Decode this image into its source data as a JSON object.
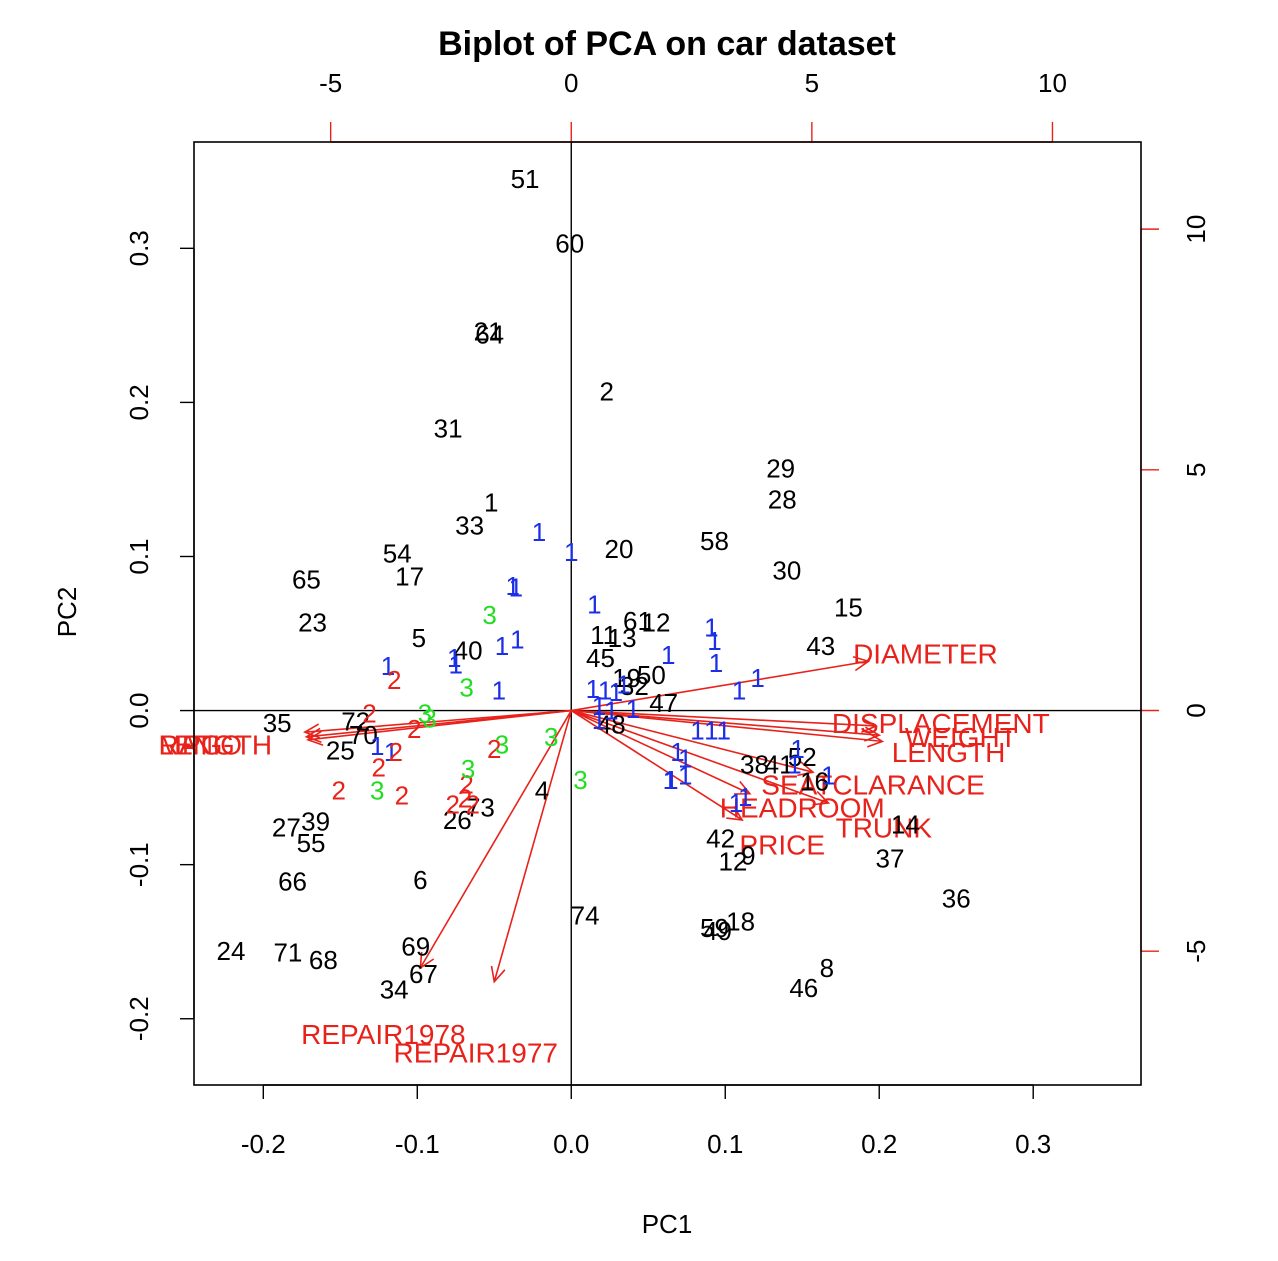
{
  "colors": {
    "observation_default": "#000000",
    "group1": "#1b2ee8",
    "group2": "#e8221b",
    "group3": "#22dd22",
    "vector": "#e8221b",
    "frame": "#000000"
  },
  "chart_data": {
    "type": "scatter",
    "subtype": "biplot",
    "title": "Biplot of PCA on car dataset",
    "xlabel": "PC1",
    "ylabel": "PC2",
    "xlim": [
      -0.245,
      0.37
    ],
    "ylim": [
      -0.243,
      0.369
    ],
    "x_ticks": [
      -0.2,
      -0.1,
      0.0,
      0.1,
      0.2,
      0.3
    ],
    "x_tick_labels": [
      "-0.2",
      "-0.1",
      "0.0",
      "0.1",
      "0.2",
      "0.3"
    ],
    "y_ticks": [
      -0.2,
      -0.1,
      0.0,
      0.1,
      0.2,
      0.3
    ],
    "y_tick_labels": [
      "-0.2",
      "-0.1",
      "0.0",
      "0.1",
      "0.2",
      "0.3"
    ],
    "top_axis": {
      "lim": [
        -7.84,
        11.84
      ],
      "ticks": [
        -5,
        0,
        5,
        10
      ],
      "tick_labels": [
        "-5",
        "0",
        "5",
        "10"
      ]
    },
    "right_axis": {
      "lim": [
        -7.78,
        11.81
      ],
      "ticks": [
        -5,
        0,
        5,
        10
      ],
      "tick_labels": [
        "-5",
        "0",
        "5",
        "10"
      ]
    },
    "observations": [
      {
        "label": "51",
        "x": -0.03,
        "y": 0.345,
        "group": 0
      },
      {
        "label": "60",
        "x": -0.001,
        "y": 0.303,
        "group": 0
      },
      {
        "label": "21",
        "x": -0.054,
        "y": 0.246,
        "group": 0
      },
      {
        "label": "64",
        "x": -0.053,
        "y": 0.244,
        "group": 0
      },
      {
        "label": "2",
        "x": 0.023,
        "y": 0.207,
        "group": 0
      },
      {
        "label": "31",
        "x": -0.08,
        "y": 0.183,
        "group": 0
      },
      {
        "label": "29",
        "x": 0.136,
        "y": 0.157,
        "group": 0
      },
      {
        "label": "28",
        "x": 0.137,
        "y": 0.137,
        "group": 0
      },
      {
        "label": "1",
        "x": -0.052,
        "y": 0.135,
        "group": 0
      },
      {
        "label": "33",
        "x": -0.066,
        "y": 0.12,
        "group": 0
      },
      {
        "label": "20",
        "x": 0.031,
        "y": 0.105,
        "group": 0
      },
      {
        "label": "58",
        "x": 0.093,
        "y": 0.11,
        "group": 0
      },
      {
        "label": "54",
        "x": -0.113,
        "y": 0.102,
        "group": 0
      },
      {
        "label": "65",
        "x": -0.172,
        "y": 0.085,
        "group": 0
      },
      {
        "label": "17",
        "x": -0.105,
        "y": 0.087,
        "group": 0
      },
      {
        "label": "30",
        "x": 0.14,
        "y": 0.091,
        "group": 0
      },
      {
        "label": "15",
        "x": 0.18,
        "y": 0.067,
        "group": 0
      },
      {
        "label": "23",
        "x": -0.168,
        "y": 0.057,
        "group": 0
      },
      {
        "label": "61",
        "x": 0.043,
        "y": 0.058,
        "group": 0
      },
      {
        "label": "12",
        "x": 0.055,
        "y": 0.057,
        "group": 0
      },
      {
        "label": "11",
        "x": 0.021,
        "y": 0.049,
        "group": 0
      },
      {
        "label": "13",
        "x": 0.033,
        "y": 0.047,
        "group": 0
      },
      {
        "label": "43",
        "x": 0.162,
        "y": 0.042,
        "group": 0
      },
      {
        "label": "5",
        "x": -0.099,
        "y": 0.047,
        "group": 0
      },
      {
        "label": "40",
        "x": -0.067,
        "y": 0.039,
        "group": 0
      },
      {
        "label": "45",
        "x": 0.019,
        "y": 0.034,
        "group": 0
      },
      {
        "label": "19",
        "x": 0.036,
        "y": 0.021,
        "group": 0
      },
      {
        "label": "50",
        "x": 0.052,
        "y": 0.023,
        "group": 0
      },
      {
        "label": "32",
        "x": 0.041,
        "y": 0.016,
        "group": 0
      },
      {
        "label": "47",
        "x": 0.06,
        "y": 0.005,
        "group": 0
      },
      {
        "label": "35",
        "x": -0.191,
        "y": -0.008,
        "group": 0
      },
      {
        "label": "72",
        "x": -0.14,
        "y": -0.007,
        "group": 0
      },
      {
        "label": "70",
        "x": -0.135,
        "y": -0.016,
        "group": 0
      },
      {
        "label": "48",
        "x": 0.026,
        "y": -0.009,
        "group": 0
      },
      {
        "label": "25",
        "x": -0.15,
        "y": -0.026,
        "group": 0
      },
      {
        "label": "38",
        "x": 0.119,
        "y": -0.035,
        "group": 0
      },
      {
        "label": "41",
        "x": 0.135,
        "y": -0.035,
        "group": 0
      },
      {
        "label": "52",
        "x": 0.15,
        "y": -0.03,
        "group": 0
      },
      {
        "label": "16",
        "x": 0.158,
        "y": -0.046,
        "group": 0
      },
      {
        "label": "4",
        "x": -0.019,
        "y": -0.052,
        "group": 0
      },
      {
        "label": "73",
        "x": -0.059,
        "y": -0.063,
        "group": 0
      },
      {
        "label": "26",
        "x": -0.074,
        "y": -0.071,
        "group": 0
      },
      {
        "label": "27",
        "x": -0.185,
        "y": -0.076,
        "group": 0
      },
      {
        "label": "39",
        "x": -0.166,
        "y": -0.072,
        "group": 0
      },
      {
        "label": "14",
        "x": 0.217,
        "y": -0.074,
        "group": 0
      },
      {
        "label": "55",
        "x": -0.169,
        "y": -0.086,
        "group": 0
      },
      {
        "label": "42",
        "x": 0.097,
        "y": -0.083,
        "group": 0
      },
      {
        "label": "9",
        "x": 0.115,
        "y": -0.094,
        "group": 0
      },
      {
        "label": "12",
        "x": 0.105,
        "y": -0.098,
        "group": 0
      },
      {
        "label": "37",
        "x": 0.207,
        "y": -0.096,
        "group": 0
      },
      {
        "label": "6",
        "x": -0.098,
        "y": -0.11,
        "group": 0
      },
      {
        "label": "66",
        "x": -0.181,
        "y": -0.111,
        "group": 0
      },
      {
        "label": "36",
        "x": 0.25,
        "y": -0.122,
        "group": 0
      },
      {
        "label": "74",
        "x": 0.009,
        "y": -0.133,
        "group": 0
      },
      {
        "label": "18",
        "x": 0.11,
        "y": -0.137,
        "group": 0
      },
      {
        "label": "59",
        "x": 0.093,
        "y": -0.141,
        "group": 0
      },
      {
        "label": "49",
        "x": 0.095,
        "y": -0.143,
        "group": 0
      },
      {
        "label": "69",
        "x": -0.101,
        "y": -0.153,
        "group": 0
      },
      {
        "label": "24",
        "x": -0.221,
        "y": -0.156,
        "group": 0
      },
      {
        "label": "71",
        "x": -0.184,
        "y": -0.157,
        "group": 0
      },
      {
        "label": "68",
        "x": -0.161,
        "y": -0.162,
        "group": 0
      },
      {
        "label": "67",
        "x": -0.096,
        "y": -0.171,
        "group": 0
      },
      {
        "label": "8",
        "x": 0.166,
        "y": -0.167,
        "group": 0
      },
      {
        "label": "34",
        "x": -0.115,
        "y": -0.181,
        "group": 0
      },
      {
        "label": "46",
        "x": 0.151,
        "y": -0.18,
        "group": 0
      },
      {
        "label": "1",
        "x": -0.021,
        "y": 0.116,
        "group": 1
      },
      {
        "label": "1",
        "x": 0.0,
        "y": 0.103,
        "group": 1
      },
      {
        "label": "1",
        "x": -0.038,
        "y": 0.081,
        "group": 1
      },
      {
        "label": "1",
        "x": -0.036,
        "y": 0.08,
        "group": 1
      },
      {
        "label": "1",
        "x": 0.015,
        "y": 0.069,
        "group": 1
      },
      {
        "label": "1",
        "x": 0.091,
        "y": 0.054,
        "group": 1
      },
      {
        "label": "1",
        "x": 0.093,
        "y": 0.045,
        "group": 1
      },
      {
        "label": "1",
        "x": -0.035,
        "y": 0.046,
        "group": 1
      },
      {
        "label": "1",
        "x": -0.045,
        "y": 0.042,
        "group": 1
      },
      {
        "label": "1",
        "x": 0.063,
        "y": 0.036,
        "group": 1
      },
      {
        "label": "1",
        "x": 0.094,
        "y": 0.031,
        "group": 1
      },
      {
        "label": "1",
        "x": -0.076,
        "y": 0.034,
        "group": 1
      },
      {
        "label": "1",
        "x": -0.075,
        "y": 0.03,
        "group": 1
      },
      {
        "label": "1",
        "x": -0.119,
        "y": 0.029,
        "group": 1
      },
      {
        "label": "1",
        "x": 0.121,
        "y": 0.021,
        "group": 1
      },
      {
        "label": "1",
        "x": 0.109,
        "y": 0.013,
        "group": 1
      },
      {
        "label": "1",
        "x": -0.047,
        "y": 0.013,
        "group": 1
      },
      {
        "label": "1",
        "x": 0.014,
        "y": 0.014,
        "group": 1
      },
      {
        "label": "1",
        "x": 0.022,
        "y": 0.013,
        "group": 1
      },
      {
        "label": "1",
        "x": 0.029,
        "y": 0.012,
        "group": 1
      },
      {
        "label": "1",
        "x": 0.034,
        "y": 0.017,
        "group": 1
      },
      {
        "label": "1",
        "x": 0.018,
        "y": 0.003,
        "group": 1
      },
      {
        "label": "1",
        "x": 0.026,
        "y": 0.0,
        "group": 1
      },
      {
        "label": "1",
        "x": 0.04,
        "y": 0.001,
        "group": 1
      },
      {
        "label": "1",
        "x": 0.018,
        "y": -0.006,
        "group": 1
      },
      {
        "label": "1",
        "x": 0.082,
        "y": -0.013,
        "group": 1
      },
      {
        "label": "1",
        "x": 0.091,
        "y": -0.013,
        "group": 1
      },
      {
        "label": "1",
        "x": 0.099,
        "y": -0.013,
        "group": 1
      },
      {
        "label": "1",
        "x": 0.147,
        "y": -0.025,
        "group": 1
      },
      {
        "label": "1",
        "x": 0.167,
        "y": -0.042,
        "group": 1
      },
      {
        "label": "1",
        "x": 0.145,
        "y": -0.035,
        "group": 1
      },
      {
        "label": "1",
        "x": 0.069,
        "y": -0.027,
        "group": 1
      },
      {
        "label": "1",
        "x": 0.074,
        "y": -0.031,
        "group": 1
      },
      {
        "label": "1",
        "x": -0.126,
        "y": -0.023,
        "group": 1
      },
      {
        "label": "1",
        "x": -0.117,
        "y": -0.027,
        "group": 1
      },
      {
        "label": "1",
        "x": 0.064,
        "y": -0.045,
        "group": 1
      },
      {
        "label": "1",
        "x": 0.065,
        "y": -0.045,
        "group": 1
      },
      {
        "label": "1",
        "x": 0.074,
        "y": -0.042,
        "group": 1
      },
      {
        "label": "1",
        "x": 0.113,
        "y": -0.056,
        "group": 1
      },
      {
        "label": "1",
        "x": 0.107,
        "y": -0.06,
        "group": 1
      },
      {
        "label": "2",
        "x": -0.115,
        "y": 0.02,
        "group": 2
      },
      {
        "label": "2",
        "x": -0.131,
        "y": -0.002,
        "group": 2
      },
      {
        "label": "2",
        "x": -0.102,
        "y": -0.012,
        "group": 2
      },
      {
        "label": "2",
        "x": -0.114,
        "y": -0.027,
        "group": 2
      },
      {
        "label": "2",
        "x": -0.125,
        "y": -0.037,
        "group": 2
      },
      {
        "label": "2",
        "x": -0.05,
        "y": -0.025,
        "group": 2
      },
      {
        "label": "2",
        "x": -0.151,
        "y": -0.052,
        "group": 2
      },
      {
        "label": "2",
        "x": -0.11,
        "y": -0.055,
        "group": 2
      },
      {
        "label": "2",
        "x": -0.068,
        "y": -0.048,
        "group": 2
      },
      {
        "label": "2",
        "x": -0.077,
        "y": -0.061,
        "group": 2
      },
      {
        "label": "2",
        "x": -0.064,
        "y": -0.061,
        "group": 2
      },
      {
        "label": "2",
        "x": -0.069,
        "y": -0.057,
        "group": 2
      },
      {
        "label": "3",
        "x": -0.053,
        "y": 0.062,
        "group": 3
      },
      {
        "label": "3",
        "x": -0.068,
        "y": 0.015,
        "group": 3
      },
      {
        "label": "3",
        "x": -0.095,
        "y": -0.002,
        "group": 3
      },
      {
        "label": "3",
        "x": -0.092,
        "y": -0.005,
        "group": 3
      },
      {
        "label": "3",
        "x": -0.045,
        "y": -0.022,
        "group": 3
      },
      {
        "label": "3",
        "x": -0.013,
        "y": -0.017,
        "group": 3
      },
      {
        "label": "3",
        "x": -0.067,
        "y": -0.038,
        "group": 3
      },
      {
        "label": "3",
        "x": 0.006,
        "y": -0.045,
        "group": 3
      },
      {
        "label": "3",
        "x": -0.126,
        "y": -0.052,
        "group": 3
      }
    ],
    "loadings": [
      {
        "name": "DIAMETER",
        "x": 0.193,
        "y": 0.032
      },
      {
        "name": "DISPLACEMENT",
        "x": 0.198,
        "y": -0.01
      },
      {
        "name": "WEIGHT",
        "x": 0.2,
        "y": -0.016
      },
      {
        "name": "LENGTH",
        "x": 0.202,
        "y": -0.02
      },
      {
        "name": "SEATCLARANCE",
        "x": 0.157,
        "y": -0.04
      },
      {
        "name": "HEADROOM",
        "x": 0.116,
        "y": -0.054
      },
      {
        "name": "TRUNK",
        "x": 0.167,
        "y": -0.06
      },
      {
        "name": "PRICE",
        "x": 0.111,
        "y": -0.071
      },
      {
        "name": "MPG",
        "x": -0.173,
        "y": -0.014
      },
      {
        "name": "LENGTH",
        "x": -0.172,
        "y": -0.017
      },
      {
        "name": "RATIO",
        "x": -0.171,
        "y": -0.019
      },
      {
        "name": "REPAIR1978",
        "x": -0.098,
        "y": -0.167
      },
      {
        "name": "REPAIR1977",
        "x": -0.05,
        "y": -0.176
      }
    ],
    "loading_labels": [
      {
        "text": "DIAMETER",
        "x": 0.23,
        "y": 0.037,
        "anchor": "middle"
      },
      {
        "text": "DISPLACEMENT",
        "x": 0.24,
        "y": -0.008,
        "anchor": "middle"
      },
      {
        "text": "WEIGHT",
        "x": 0.253,
        "y": -0.017,
        "anchor": "middle"
      },
      {
        "text": "LENGTH",
        "x": 0.245,
        "y": -0.027,
        "anchor": "middle"
      },
      {
        "text": "SEATCLARANCE",
        "x": 0.196,
        "y": -0.048,
        "anchor": "middle"
      },
      {
        "text": "HEADROOM",
        "x": 0.15,
        "y": -0.063,
        "anchor": "middle"
      },
      {
        "text": "TRUNK",
        "x": 0.203,
        "y": -0.076,
        "anchor": "middle"
      },
      {
        "text": "PRICE",
        "x": 0.137,
        "y": -0.087,
        "anchor": "middle"
      },
      {
        "text": "MPG",
        "x": -0.268,
        "y": -0.022,
        "anchor": "start"
      },
      {
        "text": "LENGTH",
        "x": -0.268,
        "y": -0.022,
        "anchor": "start"
      },
      {
        "text": "RATIO",
        "x": -0.268,
        "y": -0.022,
        "anchor": "start"
      },
      {
        "text": "REPAIR1978",
        "x": -0.122,
        "y": -0.21,
        "anchor": "middle"
      },
      {
        "text": "REPAIR1977",
        "x": -0.062,
        "y": -0.222,
        "anchor": "middle"
      }
    ]
  }
}
